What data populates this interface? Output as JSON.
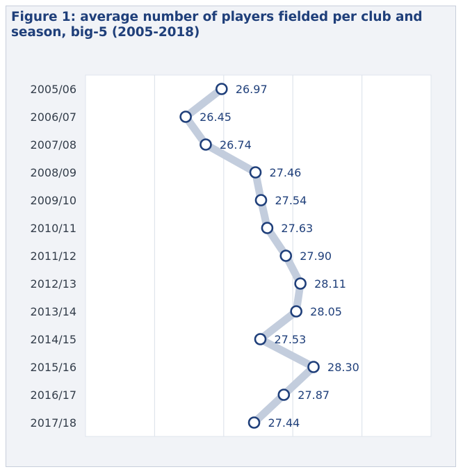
{
  "figure": {
    "title": "Figure 1: average number of players fielded per club and season, big-5 (2005-2018)"
  },
  "colors": {
    "title": "#1f3f7a",
    "marker_stroke": "#1f3f7a",
    "line": "#c3cddd",
    "grid": "#dfe4ec",
    "frame_bg": "#f1f3f7",
    "plot_bg": "#ffffff"
  },
  "chart_data": {
    "type": "line",
    "orientation": "horizontal",
    "title": "Figure 1: average number of players fielded per club and season, big-5 (2005-2018)",
    "xlabel": "",
    "ylabel": "",
    "categories": [
      "2005/06",
      "2006/07",
      "2007/08",
      "2008/09",
      "2009/10",
      "2010/11",
      "2011/12",
      "2012/13",
      "2013/14",
      "2014/15",
      "2015/16",
      "2016/17",
      "2017/18"
    ],
    "series": [
      {
        "values": [
          26.97,
          26.45,
          26.74,
          27.46,
          27.54,
          27.63,
          27.9,
          28.11,
          28.05,
          27.53,
          28.3,
          27.87,
          27.44
        ],
        "labels": [
          "26.97",
          "26.45",
          "26.74",
          "27.46",
          "27.54",
          "27.63",
          "27.90",
          "28.11",
          "28.05",
          "27.53",
          "28.30",
          "27.87",
          "27.44"
        ]
      }
    ],
    "xlim": [
      25.0,
      30.0
    ],
    "grid": true,
    "axis_tick_labels_shown": false,
    "legend": "none"
  }
}
